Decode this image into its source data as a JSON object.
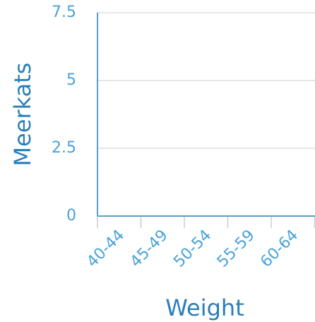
{
  "chart_data": {
    "type": "bar",
    "x_label": "Weight",
    "y_label": "Meerkats",
    "categories": [
      "40-44",
      "45-49",
      "50-54",
      "55-59",
      "60-64"
    ],
    "values": [
      0,
      0,
      0,
      0,
      0
    ],
    "color": "#4aa3d8",
    "ylim": [
      0,
      7.5
    ],
    "yticks": [
      0,
      2.5,
      5,
      7.5
    ],
    "grid": true
  }
}
